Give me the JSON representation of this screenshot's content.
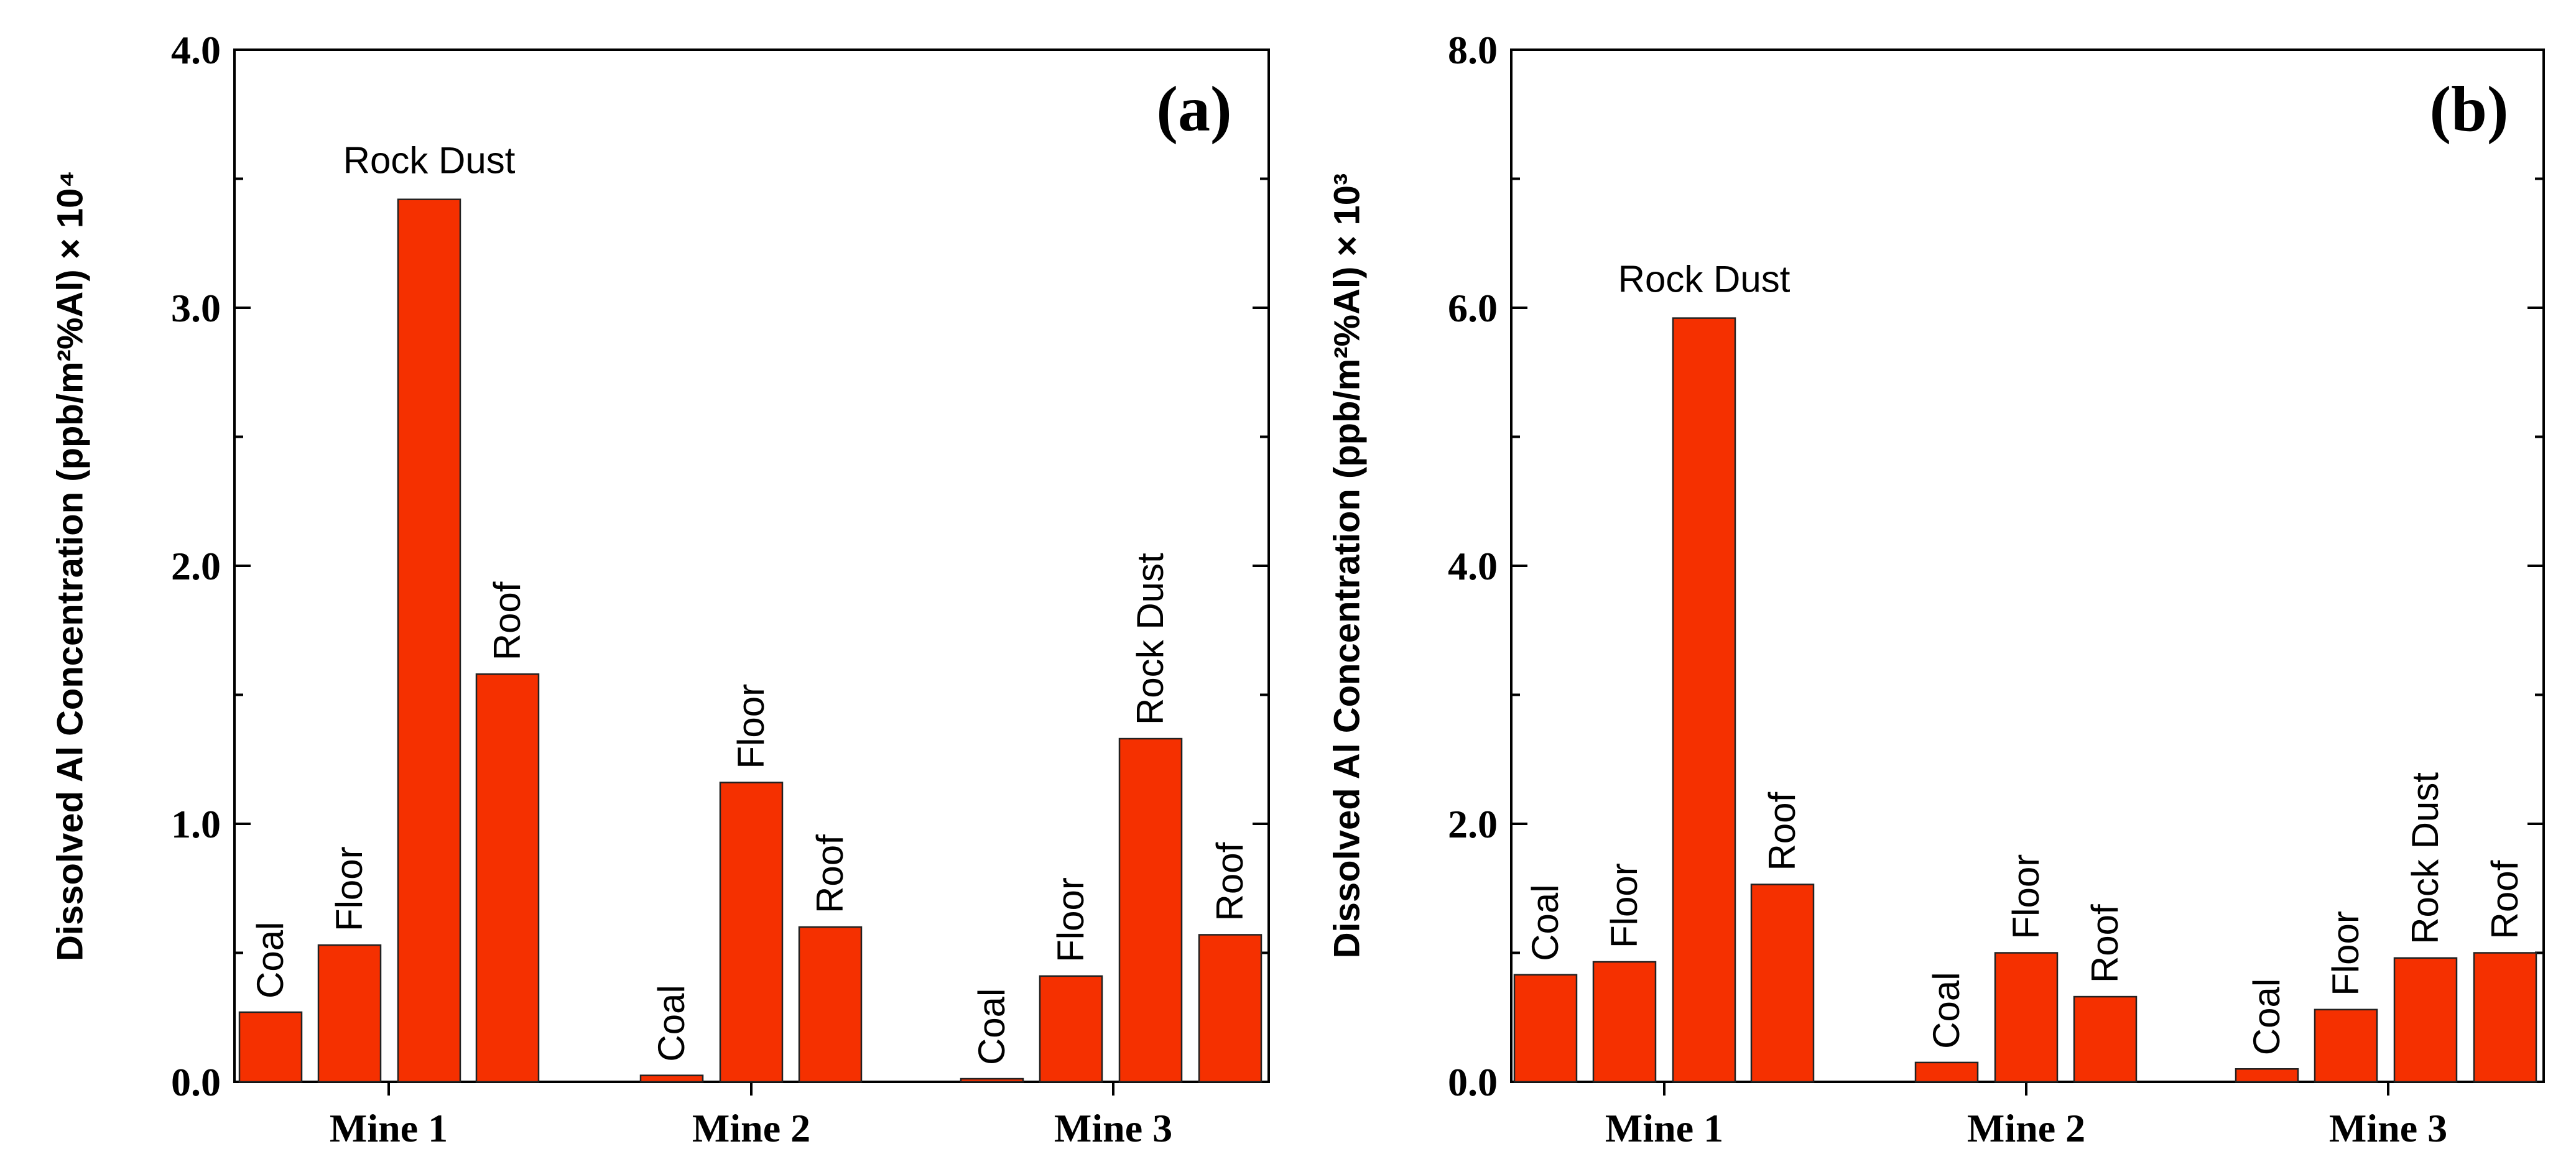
{
  "chart_data": [
    {
      "type": "bar",
      "panel_label": "(a)",
      "ylabel": "Dissolved Al Concentration (ppb/m²%Al) × 10⁴",
      "ylim": [
        0,
        4.0
      ],
      "yticks": [
        "0.0",
        "1.0",
        "2.0",
        "3.0",
        "4.0"
      ],
      "groups": [
        {
          "name": "Mine 1",
          "bars": [
            {
              "label": "Coal",
              "value": 0.27,
              "rotated": true
            },
            {
              "label": "Floor",
              "value": 0.53,
              "rotated": true
            },
            {
              "label": "Rock Dust",
              "value": 3.42,
              "rotated": false
            },
            {
              "label": "Roof",
              "value": 1.58,
              "rotated": true
            }
          ]
        },
        {
          "name": "Mine 2",
          "bars": [
            {
              "label": "Coal",
              "value": 0.025,
              "rotated": true
            },
            {
              "label": "Floor",
              "value": 1.16,
              "rotated": true
            },
            {
              "label": "Roof",
              "value": 0.6,
              "rotated": true
            }
          ]
        },
        {
          "name": "Mine 3",
          "bars": [
            {
              "label": "Coal",
              "value": 0.012,
              "rotated": true
            },
            {
              "label": "Floor",
              "value": 0.41,
              "rotated": true
            },
            {
              "label": "Rock Dust",
              "value": 1.33,
              "rotated": true
            },
            {
              "label": "Roof",
              "value": 0.57,
              "rotated": true
            }
          ]
        }
      ]
    },
    {
      "type": "bar",
      "panel_label": "(b)",
      "ylabel": "Dissolved Al Concentration (ppb/m²%Al) × 10³",
      "ylim": [
        0,
        8.0
      ],
      "yticks": [
        "0.0",
        "2.0",
        "4.0",
        "6.0",
        "8.0"
      ],
      "groups": [
        {
          "name": "Mine 1",
          "bars": [
            {
              "label": "Coal",
              "value": 0.83,
              "rotated": true
            },
            {
              "label": "Floor",
              "value": 0.93,
              "rotated": true
            },
            {
              "label": "Rock Dust",
              "value": 5.92,
              "rotated": false
            },
            {
              "label": "Roof",
              "value": 1.53,
              "rotated": true
            }
          ]
        },
        {
          "name": "Mine 2",
          "bars": [
            {
              "label": "Coal",
              "value": 0.15,
              "rotated": true
            },
            {
              "label": "Floor",
              "value": 1.0,
              "rotated": true
            },
            {
              "label": "Roof",
              "value": 0.66,
              "rotated": true
            }
          ]
        },
        {
          "name": "Mine 3",
          "bars": [
            {
              "label": "Coal",
              "value": 0.1,
              "rotated": true
            },
            {
              "label": "Floor",
              "value": 0.56,
              "rotated": true
            },
            {
              "label": "Rock Dust",
              "value": 0.96,
              "rotated": true
            },
            {
              "label": "Roof",
              "value": 1.0,
              "rotated": true
            }
          ]
        }
      ]
    }
  ]
}
